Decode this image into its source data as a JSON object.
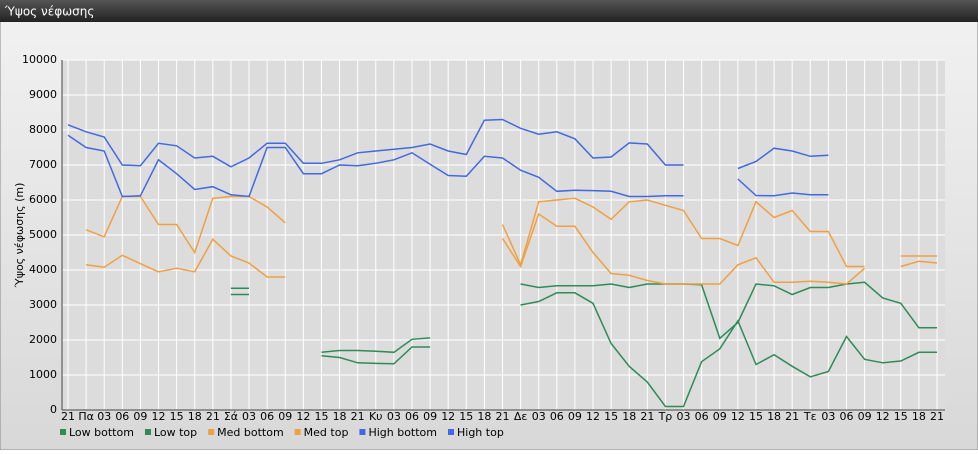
{
  "chart_data": {
    "type": "line",
    "title": "Ύψος νέφωσης",
    "y_label": "Ύψος νέφωσης (m)",
    "categories": [
      "21",
      "Πα",
      "03",
      "06",
      "09",
      "12",
      "15",
      "18",
      "21",
      "Σά",
      "03",
      "06",
      "09",
      "12",
      "15",
      "18",
      "21",
      "Κυ",
      "03",
      "06",
      "09",
      "12",
      "15",
      "18",
      "21",
      "Δε",
      "03",
      "06",
      "09",
      "12",
      "15",
      "18",
      "21",
      "Τρ",
      "03",
      "06",
      "09",
      "12",
      "15",
      "18",
      "21",
      "Τε",
      "03",
      "06",
      "09",
      "12",
      "15",
      "18",
      "21"
    ],
    "ylim": [
      0,
      10000
    ],
    "yticks": [
      0,
      1000,
      2000,
      3000,
      4000,
      5000,
      6000,
      7000,
      8000,
      9000,
      10000
    ],
    "grid": true,
    "legend": "bottom",
    "series": [
      {
        "name": "Low bottom",
        "color": "#2e8b57",
        "values": [
          null,
          null,
          null,
          null,
          null,
          null,
          null,
          null,
          null,
          3300,
          3300,
          null,
          null,
          null,
          1550,
          1500,
          1350,
          1330,
          1320,
          1800,
          1800,
          null,
          null,
          null,
          null,
          3000,
          3100,
          3350,
          3350,
          3050,
          1900,
          1250,
          800,
          100,
          100,
          1380,
          1750,
          2550,
          1300,
          1580,
          1250,
          950,
          1100,
          2100,
          1450,
          1350,
          1400,
          1650,
          1650
        ]
      },
      {
        "name": "Low top",
        "color": "#2e8b57",
        "values": [
          null,
          null,
          null,
          null,
          null,
          null,
          null,
          null,
          null,
          3480,
          3480,
          null,
          null,
          null,
          1650,
          1700,
          1700,
          1680,
          1650,
          2020,
          2060,
          null,
          null,
          null,
          null,
          3600,
          3500,
          3550,
          3550,
          3550,
          3600,
          3500,
          3600,
          3600,
          3600,
          3580,
          2050,
          2500,
          3600,
          3550,
          3300,
          3500,
          3500,
          3600,
          3650,
          3200,
          3050,
          2350,
          2350
        ]
      },
      {
        "name": "Med bottom",
        "color": "#f0a040",
        "values": [
          null,
          4150,
          4080,
          4420,
          4180,
          3950,
          4050,
          3950,
          4880,
          4400,
          4200,
          3800,
          3800,
          null,
          null,
          null,
          null,
          null,
          null,
          null,
          null,
          null,
          null,
          null,
          4900,
          4100,
          5600,
          5250,
          5250,
          4500,
          3900,
          3850,
          3700,
          3600,
          3600,
          3600,
          3600,
          4150,
          4350,
          3650,
          3650,
          3680,
          3650,
          3600,
          4050,
          null,
          4100,
          4250,
          4200
        ]
      },
      {
        "name": "Med top",
        "color": "#f0a040",
        "values": [
          null,
          5150,
          4950,
          6100,
          6100,
          5300,
          5300,
          4500,
          6050,
          6100,
          6100,
          5800,
          5350,
          null,
          null,
          null,
          null,
          null,
          null,
          null,
          null,
          null,
          null,
          null,
          5300,
          4150,
          5950,
          6000,
          6050,
          5800,
          5450,
          5950,
          6000,
          5850,
          5700,
          4900,
          4900,
          4700,
          5950,
          5500,
          5700,
          5100,
          5100,
          4100,
          4100,
          null,
          4400,
          4400,
          4400
        ]
      },
      {
        "name": "High bottom",
        "color": "#4169e1",
        "values": [
          7850,
          7500,
          7400,
          6100,
          6120,
          7150,
          6750,
          6300,
          6380,
          6150,
          6100,
          7500,
          7500,
          6750,
          6750,
          7000,
          6980,
          7050,
          7150,
          7350,
          7020,
          6700,
          6680,
          7250,
          7200,
          6850,
          6650,
          6250,
          6280,
          6270,
          6250,
          6100,
          6100,
          6120,
          6120,
          null,
          null,
          6600,
          6130,
          6120,
          6200,
          6150,
          6150,
          null,
          null,
          null,
          null,
          null,
          null
        ]
      },
      {
        "name": "High top",
        "color": "#4169e1",
        "values": [
          8150,
          7950,
          7800,
          7000,
          6980,
          7620,
          7550,
          7200,
          7250,
          6950,
          7200,
          7620,
          7620,
          7050,
          7050,
          7150,
          7350,
          7400,
          7450,
          7500,
          7600,
          7400,
          7300,
          8280,
          8300,
          8050,
          7880,
          7950,
          7750,
          7200,
          7230,
          7630,
          7600,
          7000,
          7000,
          null,
          null,
          6900,
          7100,
          7480,
          7400,
          7250,
          7280,
          null,
          null,
          null,
          null,
          null,
          null
        ]
      }
    ]
  }
}
